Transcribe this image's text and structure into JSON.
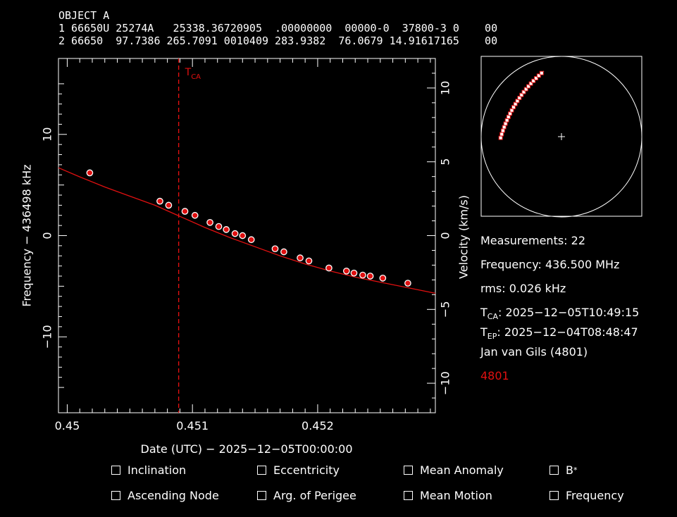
{
  "header": {
    "title": "OBJECT A",
    "line1": "1 66650U 25274A   25338.36720905  .00000000  00000-0  37800-3 0    00",
    "line2": "2 66650  97.7386 265.7091 0010409 283.9382  76.0679 14.91617165    00"
  },
  "chart_data": {
    "type": "scatter",
    "title": "",
    "xlabel": "Date (UTC) − 2025−12−05T00:00:00",
    "ylabel": "Frequency − 436498 kHz",
    "y2label": "Velocity (km/s)",
    "xlim": [
      0.44993,
      0.45294
    ],
    "ylim": [
      -17.5,
      17.5
    ],
    "y2lim": [
      -12,
      12
    ],
    "xticks": [
      0.45,
      0.451,
      0.452
    ],
    "xtick_labels": [
      "0.45",
      "0.451",
      "0.452"
    ],
    "yticks": [
      -10,
      0,
      10
    ],
    "ytick_labels": [
      "−10",
      "0",
      "10"
    ],
    "y2ticks": [
      -10,
      -5,
      0,
      5,
      10
    ],
    "y2tick_labels": [
      "−10",
      "−5",
      "0",
      "5",
      "10"
    ],
    "tca_x": 0.45089,
    "tca_label": "T",
    "tca_sub": "CA",
    "grid": false,
    "colors": {
      "points": "#e01010",
      "curve": "#e01010",
      "tca": "#e01010",
      "axes": "#ffffff"
    },
    "series": [
      {
        "points": [
          [
            0.45018,
            6.2
          ],
          [
            0.45074,
            3.4
          ],
          [
            0.45081,
            3.0
          ],
          [
            0.45094,
            2.4
          ],
          [
            0.45102,
            2.0
          ],
          [
            0.45114,
            1.3
          ],
          [
            0.45121,
            0.9
          ],
          [
            0.45127,
            0.6
          ],
          [
            0.45134,
            0.2
          ],
          [
            0.4514,
            0.0
          ],
          [
            0.45147,
            -0.4
          ],
          [
            0.45166,
            -1.3
          ],
          [
            0.45173,
            -1.6
          ],
          [
            0.45186,
            -2.2
          ],
          [
            0.45193,
            -2.5
          ],
          [
            0.45209,
            -3.2
          ],
          [
            0.45223,
            -3.5
          ],
          [
            0.45229,
            -3.7
          ],
          [
            0.45236,
            -3.9
          ],
          [
            0.45242,
            -4.0
          ],
          [
            0.45252,
            -4.2
          ],
          [
            0.45272,
            -4.7
          ]
        ]
      },
      {
        "curve": [
          [
            0.44993,
            6.7
          ],
          [
            0.4501,
            5.8
          ],
          [
            0.4503,
            4.8
          ],
          [
            0.4505,
            3.9
          ],
          [
            0.4507,
            3.0
          ],
          [
            0.4509,
            1.9
          ],
          [
            0.4511,
            0.8
          ],
          [
            0.4513,
            -0.2
          ],
          [
            0.4515,
            -1.1
          ],
          [
            0.4517,
            -2.0
          ],
          [
            0.4519,
            -2.8
          ],
          [
            0.4521,
            -3.5
          ],
          [
            0.4523,
            -4.1
          ],
          [
            0.4525,
            -4.6
          ],
          [
            0.4527,
            -5.1
          ],
          [
            0.45294,
            -5.7
          ]
        ]
      }
    ]
  },
  "info": {
    "measurements": "Measurements: 22",
    "frequency": "Frequency: 436.500 MHz",
    "rms": "rms: 0.026 kHz",
    "tca_label": "T",
    "tca_sub": "CA",
    "tca_value": ": 2025−12−05T10:49:15",
    "tep_label": "T",
    "tep_sub": "EP",
    "tep_value": ": 2025−12−04T08:48:47",
    "observer": "Jan van Gils (4801)",
    "site": "4801"
  },
  "options": [
    {
      "label": "Inclination"
    },
    {
      "label": "Eccentricity"
    },
    {
      "label": "Mean Anomaly"
    },
    {
      "label": "B",
      "sup": "*"
    },
    {
      "label": "Ascending Node"
    },
    {
      "label": "Arg. of Perigee"
    },
    {
      "label": "Mean Motion"
    },
    {
      "label": "Frequency"
    }
  ]
}
